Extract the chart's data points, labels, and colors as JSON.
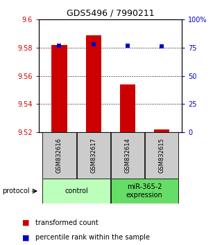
{
  "title": "GDS5496 / 7990211",
  "samples": [
    "GSM832616",
    "GSM832617",
    "GSM832614",
    "GSM832615"
  ],
  "red_values": [
    9.582,
    9.589,
    9.554,
    9.522
  ],
  "blue_values_pct": [
    77,
    78,
    77,
    76
  ],
  "ylim_left": [
    9.52,
    9.6
  ],
  "ylim_right": [
    0,
    100
  ],
  "yticks_left": [
    9.52,
    9.54,
    9.56,
    9.58,
    9.6
  ],
  "yticks_right": [
    0,
    25,
    50,
    75,
    100
  ],
  "ytick_labels_right": [
    "0",
    "25",
    "50",
    "75",
    "100%"
  ],
  "grid_values": [
    9.54,
    9.56,
    9.58
  ],
  "bar_width": 0.45,
  "bar_color": "#cc0000",
  "dot_color": "#0000cc",
  "bar_bottom": 9.52,
  "control_color": "#bbffbb",
  "mir_color": "#66dd66",
  "sample_box_color": "#cccccc",
  "protocol_label": "protocol",
  "legend_red": "transformed count",
  "legend_blue": "percentile rank within the sample",
  "title_fontsize": 9,
  "tick_fontsize": 7,
  "sample_fontsize": 6,
  "group_fontsize": 7,
  "legend_fontsize": 7,
  "protocol_fontsize": 7
}
